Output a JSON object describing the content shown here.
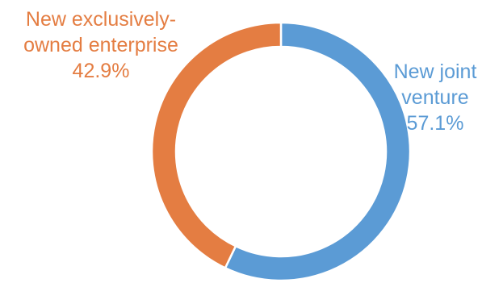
{
  "chart_data": {
    "type": "pie",
    "donut": true,
    "title": "",
    "start_angle_deg": 0,
    "direction": "clockwise",
    "slices": [
      {
        "label_lines": [
          "New joint",
          "venture"
        ],
        "value_text": "57.1%",
        "value": 57.1,
        "color": "#5b9bd5"
      },
      {
        "label_lines": [
          "New exclusively-",
          "owned enterprise"
        ],
        "value_text": "42.9%",
        "value": 42.9,
        "color": "#e47d42"
      }
    ]
  }
}
